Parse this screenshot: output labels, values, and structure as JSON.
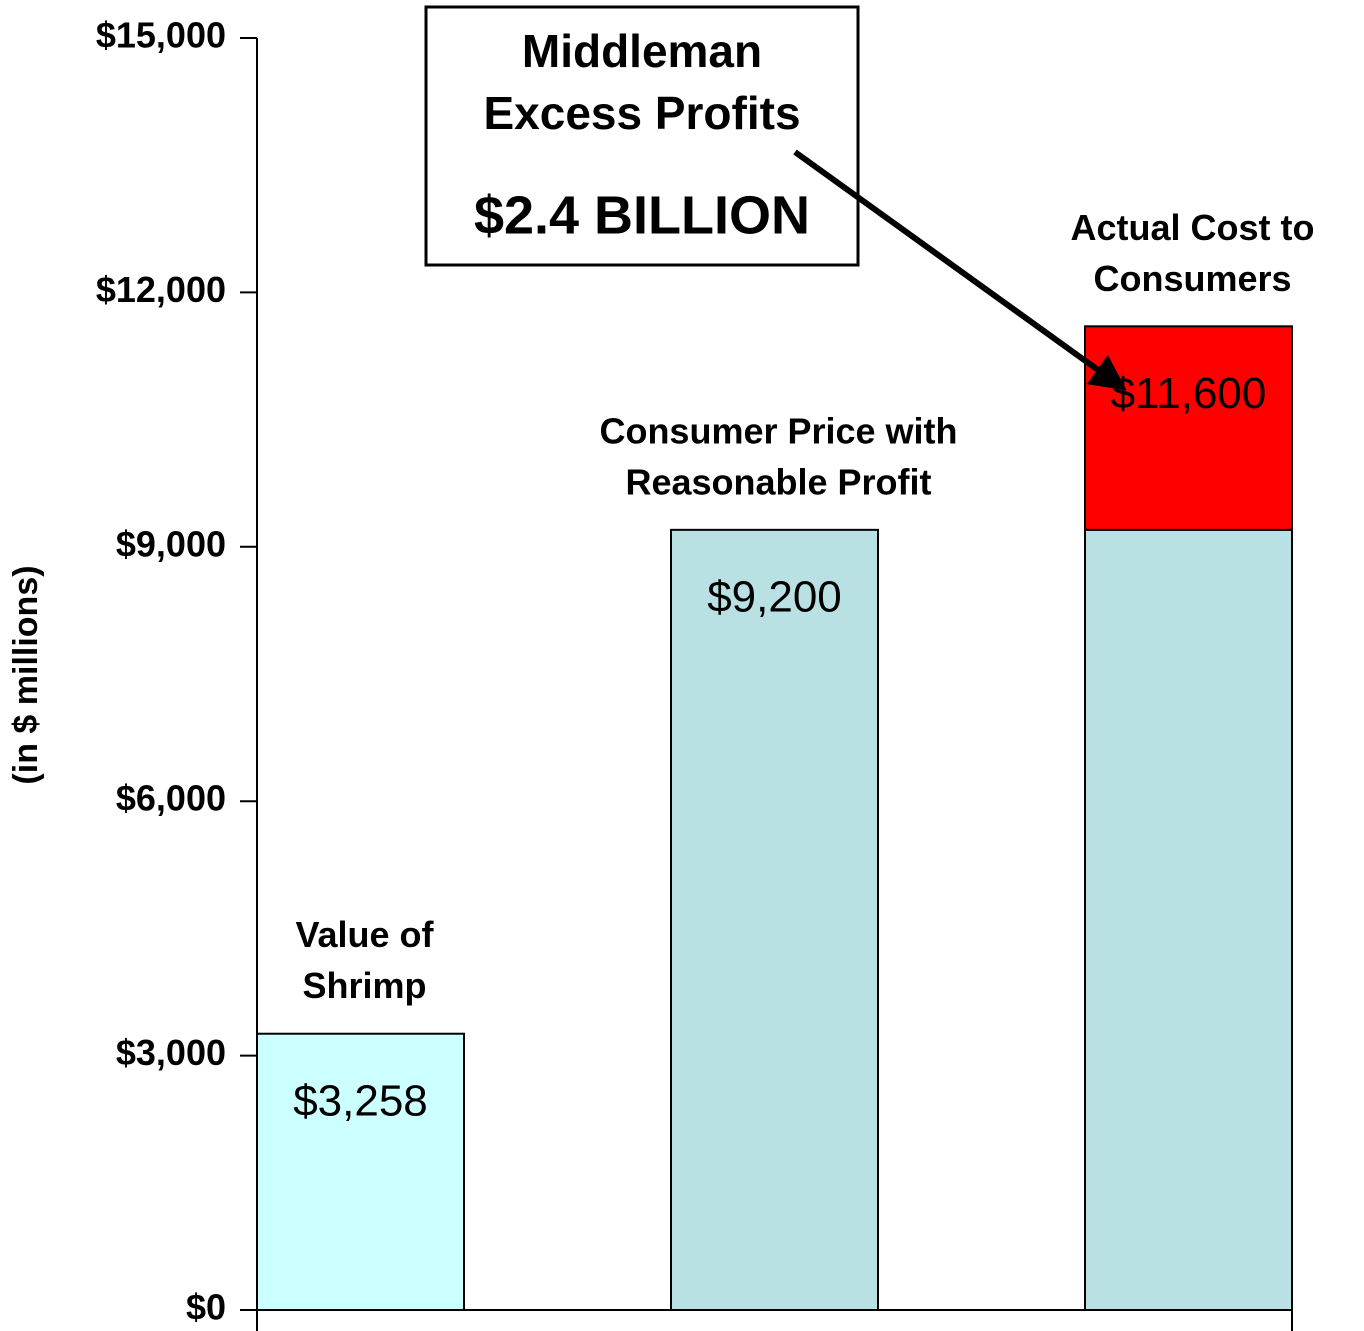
{
  "chart_data": {
    "type": "stacked_bar",
    "y_axis_label": "(in $ millions)",
    "categories": [
      [
        "Value of",
        "Shrimp"
      ],
      [
        "Consumer Price with",
        "Reasonable Profit"
      ],
      [
        "Actual Cost to",
        "Consumers"
      ]
    ],
    "series": [
      {
        "colors": [
          "#ccffff",
          "#b9e0e3",
          "#b9e0e3"
        ],
        "values": [
          3258,
          9200,
          9200
        ]
      },
      {
        "color": "#ff0000",
        "values": [
          null,
          null,
          2400
        ]
      }
    ],
    "totals": [
      3258,
      9200,
      11600
    ],
    "total_labels": [
      "$3,258",
      "$9,200",
      "$11,600"
    ],
    "ylim": [
      0,
      15000
    ],
    "yticks": [
      {
        "value": 0,
        "label": "$0"
      },
      {
        "value": 3000,
        "label": "$3,000"
      },
      {
        "value": 6000,
        "label": "$6,000"
      },
      {
        "value": 9000,
        "label": "$9,000"
      },
      {
        "value": 12000,
        "label": "$12,000"
      },
      {
        "value": 15000,
        "label": "$15,000"
      }
    ],
    "annotation": {
      "lines": [
        "Middleman",
        "Excess Profits"
      ],
      "amount": "$2.4 BILLION"
    }
  }
}
